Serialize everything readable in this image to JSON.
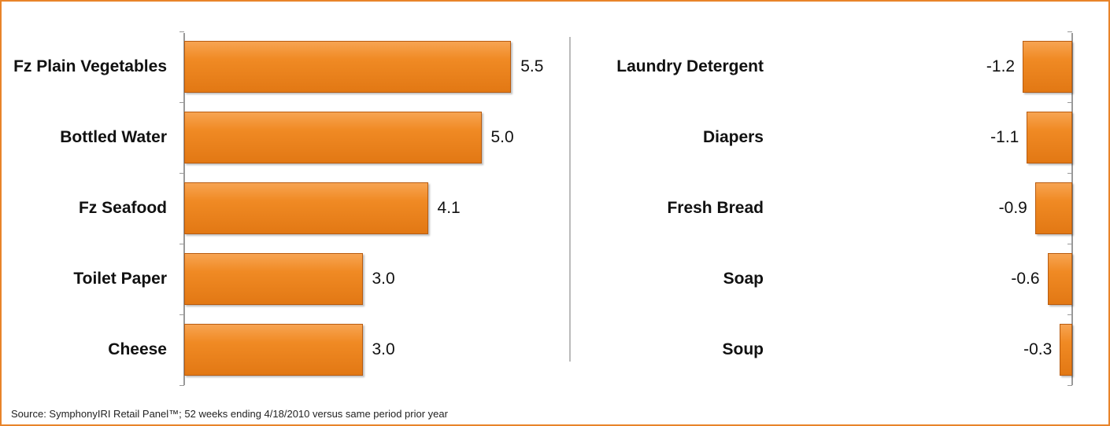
{
  "chart_data": [
    {
      "type": "barh",
      "categories": [
        "Fz Plain Vegetables",
        "Bottled Water",
        "Fz Seafood",
        "Toilet Paper",
        "Cheese"
      ],
      "values": [
        5.5,
        5.0,
        4.1,
        3.0,
        3.0
      ],
      "value_labels": [
        "5.5",
        "5.0",
        "4.1",
        "3.0",
        "3.0"
      ],
      "color": "#f08a24",
      "xlim": [
        0,
        6
      ]
    },
    {
      "type": "barh",
      "categories": [
        "Laundry Detergent",
        "Diapers",
        "Fresh Bread",
        "Soap",
        "Soup"
      ],
      "values": [
        -1.2,
        -1.1,
        -0.9,
        -0.6,
        -0.3
      ],
      "value_labels": [
        "-1.2",
        "-1.1",
        "-0.9",
        "-0.6",
        "-0.3"
      ],
      "color": "#f08a24",
      "xlim": [
        -7,
        0
      ]
    }
  ],
  "source": "Source:  SymphonyIRI Retail Panel™; 52 weeks ending 4/18/2010 versus same period prior year"
}
